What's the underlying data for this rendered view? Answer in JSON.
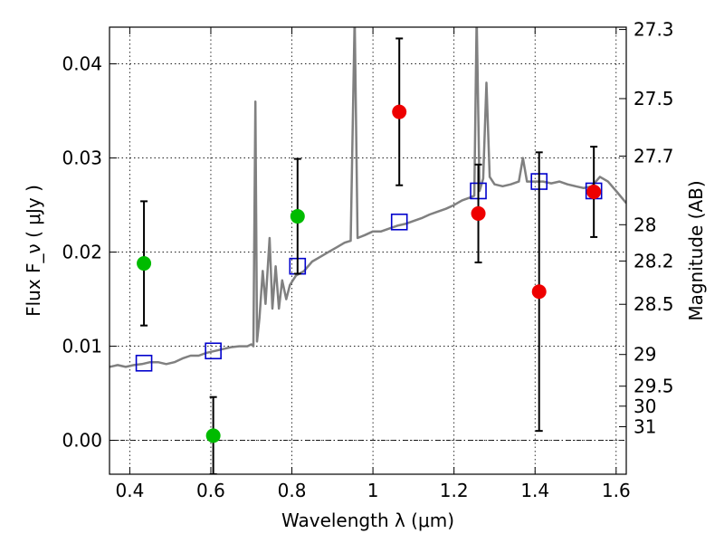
{
  "chart_data": {
    "type": "scatter",
    "xlabel": "Wavelength  λ (μm)",
    "ylabel": "Flux  F_ν  ( μJy )",
    "ylabel_right": "Magnitude (AB)",
    "xlim": [
      0.35,
      1.625
    ],
    "ylim": [
      -0.0036,
      0.0439
    ],
    "grid": true,
    "x_ticks": [
      {
        "value": 0.4,
        "label": "0.4"
      },
      {
        "value": 0.6,
        "label": "0.6"
      },
      {
        "value": 0.8,
        "label": "0.8"
      },
      {
        "value": 1.0,
        "label": "1"
      },
      {
        "value": 1.2,
        "label": "1.2"
      },
      {
        "value": 1.4,
        "label": "1.4"
      },
      {
        "value": 1.6,
        "label": "1.6"
      }
    ],
    "y_ticks": [
      {
        "value": 0.0,
        "label": "0.00"
      },
      {
        "value": 0.01,
        "label": "0.01"
      },
      {
        "value": 0.02,
        "label": "0.02"
      },
      {
        "value": 0.03,
        "label": "0.03"
      },
      {
        "value": 0.04,
        "label": "0.04"
      }
    ],
    "mag_ticks": [
      {
        "value": 27.3,
        "label": "27.3"
      },
      {
        "value": 27.5,
        "label": "27.5"
      },
      {
        "value": 27.7,
        "label": "27.7"
      },
      {
        "value": 28.0,
        "label": "28"
      },
      {
        "value": 28.2,
        "label": "28.2"
      },
      {
        "value": 28.5,
        "label": "28.5"
      },
      {
        "value": 29.0,
        "label": "29"
      },
      {
        "value": 29.5,
        "label": "29.5"
      },
      {
        "value": 30.0,
        "label": "30"
      },
      {
        "value": 31.0,
        "label": "31"
      }
    ],
    "series": [
      {
        "marker": "circle",
        "color": "#00bb00",
        "points": [
          {
            "x": 0.435,
            "y": 0.0188,
            "err": 0.0066
          },
          {
            "x": 0.606,
            "y": 0.0005,
            "err": 0.0041
          },
          {
            "x": 0.814,
            "y": 0.0238,
            "err": 0.0061
          }
        ]
      },
      {
        "marker": "circle",
        "color": "#ee0000",
        "points": [
          {
            "x": 1.065,
            "y": 0.0349,
            "err": 0.0078
          },
          {
            "x": 1.26,
            "y": 0.0241,
            "err": 0.0052
          },
          {
            "x": 1.41,
            "y": 0.0158,
            "err": 0.0148
          },
          {
            "x": 1.545,
            "y": 0.0264,
            "err": 0.0048
          }
        ]
      },
      {
        "marker": "open-square",
        "color": "#0000cc",
        "points": [
          {
            "x": 0.435,
            "y": 0.0082
          },
          {
            "x": 0.606,
            "y": 0.0095
          },
          {
            "x": 0.814,
            "y": 0.0185
          },
          {
            "x": 1.065,
            "y": 0.0232
          },
          {
            "x": 1.26,
            "y": 0.0265
          },
          {
            "x": 1.41,
            "y": 0.0275
          },
          {
            "x": 1.545,
            "y": 0.0265
          }
        ]
      },
      {
        "marker": "line",
        "color": "#808080",
        "points": [
          [
            0.35,
            0.0078
          ],
          [
            0.37,
            0.008
          ],
          [
            0.39,
            0.0078
          ],
          [
            0.41,
            0.008
          ],
          [
            0.43,
            0.0081
          ],
          [
            0.45,
            0.0083
          ],
          [
            0.47,
            0.0083
          ],
          [
            0.49,
            0.0081
          ],
          [
            0.51,
            0.0083
          ],
          [
            0.53,
            0.0087
          ],
          [
            0.55,
            0.009
          ],
          [
            0.57,
            0.009
          ],
          [
            0.59,
            0.0093
          ],
          [
            0.61,
            0.0095
          ],
          [
            0.63,
            0.0097
          ],
          [
            0.65,
            0.0099
          ],
          [
            0.67,
            0.01
          ],
          [
            0.69,
            0.01
          ],
          [
            0.7,
            0.0102
          ],
          [
            0.705,
            0.01
          ],
          [
            0.71,
            0.036
          ],
          [
            0.714,
            0.0105
          ],
          [
            0.72,
            0.013
          ],
          [
            0.728,
            0.018
          ],
          [
            0.735,
            0.0145
          ],
          [
            0.745,
            0.0215
          ],
          [
            0.752,
            0.014
          ],
          [
            0.76,
            0.0185
          ],
          [
            0.768,
            0.014
          ],
          [
            0.776,
            0.017
          ],
          [
            0.786,
            0.015
          ],
          [
            0.795,
            0.0165
          ],
          [
            0.81,
            0.0175
          ],
          [
            0.83,
            0.018
          ],
          [
            0.85,
            0.019
          ],
          [
            0.87,
            0.0195
          ],
          [
            0.89,
            0.02
          ],
          [
            0.91,
            0.0205
          ],
          [
            0.93,
            0.021
          ],
          [
            0.945,
            0.0212
          ],
          [
            0.955,
            0.045
          ],
          [
            0.962,
            0.0215
          ],
          [
            0.98,
            0.0218
          ],
          [
            1.0,
            0.0222
          ],
          [
            1.02,
            0.0222
          ],
          [
            1.04,
            0.0225
          ],
          [
            1.06,
            0.0228
          ],
          [
            1.08,
            0.023
          ],
          [
            1.1,
            0.0233
          ],
          [
            1.12,
            0.0236
          ],
          [
            1.14,
            0.024
          ],
          [
            1.16,
            0.0243
          ],
          [
            1.18,
            0.0246
          ],
          [
            1.2,
            0.025
          ],
          [
            1.22,
            0.0255
          ],
          [
            1.24,
            0.0258
          ],
          [
            1.25,
            0.026
          ],
          [
            1.256,
            0.045
          ],
          [
            1.263,
            0.0265
          ],
          [
            1.272,
            0.0278
          ],
          [
            1.28,
            0.038
          ],
          [
            1.288,
            0.028
          ],
          [
            1.3,
            0.0272
          ],
          [
            1.32,
            0.027
          ],
          [
            1.34,
            0.0272
          ],
          [
            1.36,
            0.0275
          ],
          [
            1.37,
            0.03
          ],
          [
            1.38,
            0.0275
          ],
          [
            1.4,
            0.0275
          ],
          [
            1.42,
            0.0275
          ],
          [
            1.44,
            0.0273
          ],
          [
            1.46,
            0.0275
          ],
          [
            1.48,
            0.0272
          ],
          [
            1.5,
            0.027
          ],
          [
            1.52,
            0.0268
          ],
          [
            1.54,
            0.027
          ],
          [
            1.56,
            0.028
          ],
          [
            1.58,
            0.0275
          ],
          [
            1.6,
            0.0265
          ],
          [
            1.625,
            0.0252
          ]
        ]
      }
    ]
  }
}
